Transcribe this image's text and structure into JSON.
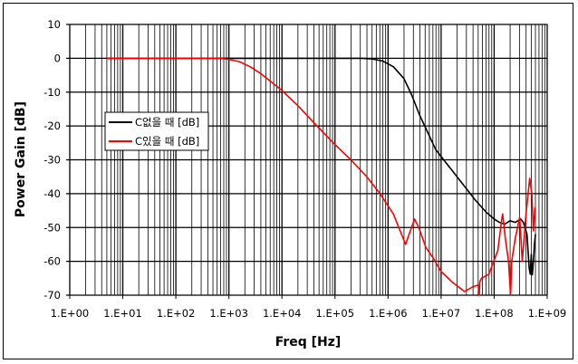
{
  "chart_data": {
    "type": "line",
    "title": "",
    "xlabel": "Freq [Hz]",
    "ylabel": "Power Gain [dB]",
    "x_scale": "log",
    "x_values_are": "log10 of frequency in Hz",
    "xlim_log10": [
      0,
      9
    ],
    "ylim": [
      -70,
      10
    ],
    "grid": true,
    "legend_position": "left-middle",
    "x_tick_labels": [
      "1.E+00",
      "1.E+01",
      "1.E+02",
      "1.E+03",
      "1.E+04",
      "1.E+05",
      "1.E+06",
      "1.E+07",
      "1.E+08",
      "1.E+09"
    ],
    "y_ticks": [
      10,
      0,
      -10,
      -20,
      -30,
      -40,
      -50,
      -60,
      -70
    ],
    "series": [
      {
        "name": "C없을 때 [dB]",
        "color": "#000000",
        "x": [
          0.7,
          3,
          4,
          5,
          5.5,
          5.7,
          5.9,
          6.1,
          6.3,
          6.45,
          6.6,
          6.75,
          6.9,
          7.1,
          7.25,
          7.45,
          7.65,
          7.85,
          8.0,
          8.1,
          8.2,
          8.3,
          8.4,
          8.5,
          8.55,
          8.62,
          8.66,
          8.68,
          8.7,
          8.72,
          8.74,
          8.76,
          8.78
        ],
        "y": [
          0,
          0,
          0,
          0,
          0,
          -0.2,
          -0.8,
          -2.5,
          -6,
          -11,
          -17,
          -22,
          -27,
          -31,
          -34,
          -38,
          -42,
          -45.5,
          -47.5,
          -48.5,
          -49,
          -48,
          -48.5,
          -47.5,
          -48.5,
          -52,
          -62,
          -63.8,
          -58,
          -64,
          -60,
          -55,
          -52
        ]
      },
      {
        "name": "C있을 때 [dB]",
        "color": "#ff0000",
        "x": [
          0.7,
          2,
          2.8,
          3.0,
          3.2,
          3.4,
          3.6,
          3.8,
          4.0,
          4.3,
          4.6,
          5.0,
          5.3,
          5.6,
          5.85,
          6.1,
          6.33,
          6.42,
          6.5,
          6.58,
          6.71,
          6.85,
          7.0,
          7.2,
          7.44,
          7.6,
          7.7,
          7.72,
          7.73,
          7.76,
          7.9,
          8.07,
          8.14,
          8.16,
          8.19,
          8.21,
          8.27,
          8.31,
          8.33,
          8.4,
          8.48,
          8.53,
          8.6,
          8.67,
          8.71,
          8.74,
          8.77
        ],
        "y": [
          0,
          0,
          0,
          -0.3,
          -1,
          -2.5,
          -4.5,
          -7,
          -9.5,
          -14,
          -19,
          -25.5,
          -30,
          -35,
          -40,
          -46,
          -55,
          -51,
          -47.5,
          -50,
          -55.8,
          -59,
          -63,
          -66,
          -68.9,
          -67.5,
          -67,
          -70,
          -66,
          -65,
          -63.8,
          -56.8,
          -48,
          -46,
          -50,
          -53,
          -60,
          -70,
          -60,
          -53,
          -47,
          -60,
          -46,
          -35.5,
          -40,
          -51,
          -44
        ]
      }
    ]
  }
}
